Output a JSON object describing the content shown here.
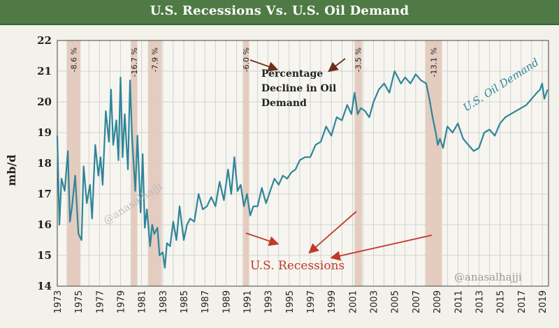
{
  "header": {
    "title": "U.S. Recessions Vs. U.S. Oil Demand"
  },
  "colors": {
    "banner": "#4f7a45",
    "background": "#f2f1ea",
    "plot_background": "#f6f5ef",
    "line": "#2f859a",
    "recession_band": "#e2c9ba",
    "annotation_dark": "#6a2f1a",
    "annotation_red": "#c0392b",
    "grid": "#c8c8c8"
  },
  "chart_data": {
    "type": "line",
    "title": "U.S. Recessions Vs. U.S. Oil Demand",
    "xlabel": "",
    "ylabel": "mb/d",
    "xlim": [
      1973,
      2019.6
    ],
    "ylim": [
      14,
      22
    ],
    "yticks": [
      14,
      15,
      16,
      17,
      18,
      19,
      20,
      21,
      22
    ],
    "xticks": [
      "1973",
      "1975",
      "1977",
      "1979",
      "1981",
      "1983",
      "1985",
      "1987",
      "1989",
      "1991",
      "1993",
      "1995",
      "1997",
      "1999",
      "2001",
      "2003",
      "2005",
      "2007",
      "2009",
      "2011",
      "2013",
      "2015",
      "2017",
      "2019"
    ],
    "grid": true,
    "series": [
      {
        "name": "U.S. Oil Demand",
        "x": [
          1973.0,
          1973.2,
          1973.4,
          1973.7,
          1974.0,
          1974.2,
          1974.4,
          1974.7,
          1975.0,
          1975.3,
          1975.5,
          1975.8,
          1976.1,
          1976.3,
          1976.6,
          1976.9,
          1977.1,
          1977.3,
          1977.6,
          1977.9,
          1978.1,
          1978.3,
          1978.6,
          1978.8,
          1979.0,
          1979.2,
          1979.4,
          1979.7,
          1979.9,
          1980.1,
          1980.4,
          1980.6,
          1980.9,
          1981.1,
          1981.3,
          1981.5,
          1981.8,
          1982.0,
          1982.2,
          1982.5,
          1982.7,
          1983.0,
          1983.2,
          1983.4,
          1983.7,
          1984.0,
          1984.3,
          1984.6,
          1985.0,
          1985.3,
          1985.6,
          1986.0,
          1986.4,
          1986.8,
          1987.2,
          1987.6,
          1988.0,
          1988.4,
          1988.8,
          1989.2,
          1989.5,
          1989.8,
          1990.1,
          1990.4,
          1990.7,
          1991.0,
          1991.3,
          1991.6,
          1992.0,
          1992.4,
          1992.8,
          1993.2,
          1993.6,
          1994.0,
          1994.4,
          1994.8,
          1995.2,
          1995.6,
          1996.0,
          1996.5,
          1997.0,
          1997.5,
          1998.0,
          1998.5,
          1999.0,
          1999.5,
          2000.0,
          2000.5,
          2000.9,
          2001.2,
          2001.5,
          2001.8,
          2002.2,
          2002.6,
          2003.0,
          2003.5,
          2004.0,
          2004.5,
          2005.0,
          2005.3,
          2005.6,
          2006.0,
          2006.5,
          2007.0,
          2007.5,
          2008.0,
          2008.3,
          2008.6,
          2008.9,
          2009.1,
          2009.3,
          2009.6,
          2010.0,
          2010.5,
          2011.0,
          2011.5,
          2012.0,
          2012.5,
          2013.0,
          2013.5,
          2014.0,
          2014.5,
          2015.0,
          2015.5,
          2016.0,
          2016.5,
          2017.0,
          2017.5,
          2018.0,
          2018.5,
          2018.8,
          2019.0,
          2019.2,
          2019.5
        ],
        "values": [
          18.9,
          16.0,
          17.5,
          17.1,
          18.4,
          16.1,
          16.6,
          17.6,
          15.7,
          15.5,
          17.9,
          16.7,
          17.3,
          16.2,
          18.6,
          17.6,
          18.2,
          17.3,
          19.7,
          18.7,
          20.4,
          18.6,
          19.4,
          18.1,
          20.8,
          18.2,
          19.6,
          17.8,
          20.7,
          18.8,
          17.1,
          18.9,
          16.4,
          18.3,
          15.9,
          16.5,
          15.3,
          16.0,
          15.7,
          15.9,
          15.0,
          15.1,
          14.6,
          15.4,
          15.3,
          16.1,
          15.5,
          16.6,
          15.5,
          16.0,
          16.2,
          16.1,
          17.0,
          16.5,
          16.6,
          16.9,
          16.6,
          17.4,
          16.8,
          17.8,
          17.0,
          18.2,
          17.1,
          17.3,
          16.6,
          17.0,
          16.3,
          16.6,
          16.6,
          17.2,
          16.7,
          17.1,
          17.5,
          17.3,
          17.6,
          17.5,
          17.7,
          17.8,
          18.1,
          18.2,
          18.2,
          18.6,
          18.7,
          19.2,
          18.9,
          19.5,
          19.4,
          19.9,
          19.6,
          20.3,
          19.6,
          19.8,
          19.7,
          19.5,
          20.0,
          20.4,
          20.6,
          20.3,
          21.0,
          20.8,
          20.6,
          20.8,
          20.6,
          20.9,
          20.7,
          20.6,
          20.1,
          19.5,
          19.0,
          18.6,
          18.8,
          18.5,
          19.2,
          19.0,
          19.3,
          18.8,
          18.6,
          18.4,
          18.5,
          19.0,
          19.1,
          18.9,
          19.3,
          19.5,
          19.6,
          19.7,
          19.8,
          19.9,
          20.1,
          20.3,
          20.4,
          20.6,
          20.1,
          20.4
        ]
      }
    ],
    "recessions": [
      {
        "start": 1973.9,
        "end": 1975.2,
        "label": "-8.6 %"
      },
      {
        "start": 1980.0,
        "end": 1980.6,
        "label": "-16.7 %"
      },
      {
        "start": 1981.6,
        "end": 1982.9,
        "label": "-7.9 %"
      },
      {
        "start": 1990.6,
        "end": 1991.2,
        "label": "-6.0 %"
      },
      {
        "start": 2001.2,
        "end": 2001.9,
        "label": "-3.5 %"
      },
      {
        "start": 2007.9,
        "end": 2009.5,
        "label": "-13.1 %"
      }
    ],
    "annotations": {
      "series_label": "U.S. Oil Demand",
      "decline_label": [
        "Percentage",
        "Decline in Oil",
        "Demand"
      ],
      "recessions_label": "U.S. Recessions",
      "watermark_center": "@anasalhajji",
      "watermark_corner": "@anasalhajji"
    }
  }
}
